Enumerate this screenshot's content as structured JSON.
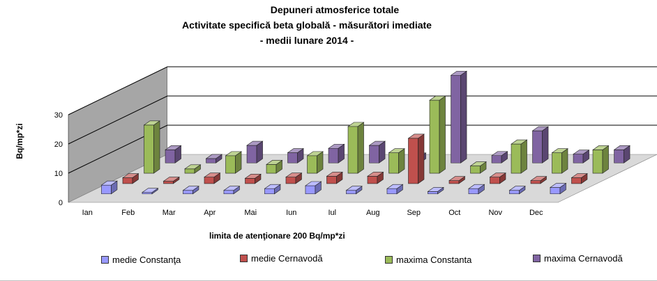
{
  "chart_data": {
    "type": "bar",
    "title_lines": [
      "Depuneri atmosferice totale",
      "Activitate specifică beta globală - măsurători imediate",
      "- medii lunare 2014 -"
    ],
    "ylabel": "Bq/mp*zi",
    "xlabel": "limita de atenţionare 200 Bq/mp*zi",
    "y_ticks": [
      "0",
      "10",
      "20",
      "30"
    ],
    "ylim": [
      0,
      30
    ],
    "categories": [
      "Ian",
      "Feb",
      "Mar",
      "Apr",
      "Mai",
      "Iun",
      "Iul",
      "Aug",
      "Sep",
      "Oct",
      "Nov",
      "Dec"
    ],
    "series": [
      {
        "name": "medie Constanţa",
        "color": "#9999ff",
        "values": [
          3,
          0.5,
          1.2,
          1.2,
          1.8,
          2.8,
          1.2,
          1.8,
          0.8,
          1.8,
          1.2,
          2.2
        ]
      },
      {
        "name": "medie Cernavodă",
        "color": "#c0504d",
        "values": [
          2,
          0.8,
          2.2,
          1.8,
          2.2,
          2.5,
          2.5,
          15.5,
          1,
          2.2,
          1,
          2
        ]
      },
      {
        "name": "maxima Constanta",
        "color": "#9bbb59",
        "values": [
          16.5,
          1.5,
          6,
          3,
          6,
          16,
          7,
          25,
          2.5,
          10,
          7,
          8
        ]
      },
      {
        "name": "maxima Cernavodă",
        "color": "#8064a2",
        "values": [
          4.5,
          1.5,
          6,
          3.5,
          5,
          6,
          2,
          30,
          2.5,
          11,
          3,
          4.5
        ]
      }
    ],
    "grid": true,
    "legend_position": "bottom",
    "chart_style": "3d-clustered-column"
  }
}
